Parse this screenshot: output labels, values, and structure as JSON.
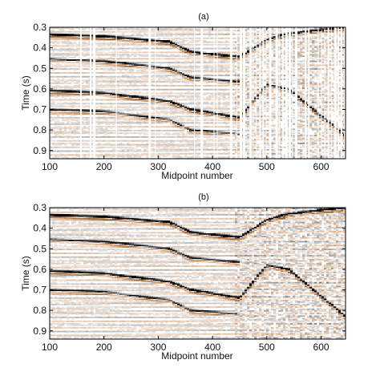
{
  "chart_data": [
    {
      "type": "heatmap",
      "title": "(a)",
      "xlabel": "Midpoint number",
      "ylabel": "Time (s)",
      "xlim": [
        100,
        645
      ],
      "ylim": [
        0.3,
        0.94
      ],
      "y_inverted": true,
      "x_ticks": [
        100,
        200,
        300,
        400,
        500,
        600
      ],
      "y_ticks": [
        0.3,
        0.4,
        0.5,
        0.6,
        0.7,
        0.8,
        0.9
      ],
      "colormap": [
        "#8a5a2b",
        "#d9a57a",
        "#ffffff",
        "#9a9a9a",
        "#000000"
      ],
      "reflectors": [
        {
          "midpoints": [
            100,
            200,
            320,
            360,
            450,
            500,
            540,
            645
          ],
          "times": [
            0.335,
            0.345,
            0.37,
            0.42,
            0.445,
            0.36,
            0.33,
            0.3
          ],
          "strength": 0.95
        },
        {
          "midpoints": [
            100,
            200,
            320,
            360,
            450
          ],
          "times": [
            0.455,
            0.465,
            0.5,
            0.545,
            0.565
          ],
          "strength": 0.7
        },
        {
          "midpoints": [
            100,
            200,
            320,
            360,
            450,
            500,
            540,
            645
          ],
          "times": [
            0.61,
            0.62,
            0.66,
            0.7,
            0.74,
            0.58,
            0.6,
            0.83
          ],
          "strength": 0.85
        },
        {
          "midpoints": [
            100,
            200,
            320,
            360,
            450
          ],
          "times": [
            0.7,
            0.71,
            0.75,
            0.8,
            0.82
          ],
          "strength": 0.6
        }
      ],
      "missing_traces": true
    },
    {
      "type": "heatmap",
      "title": "(b)",
      "xlabel": "Midpoint number",
      "ylabel": "Time (s)",
      "xlim": [
        100,
        645
      ],
      "ylim": [
        0.3,
        0.94
      ],
      "y_inverted": true,
      "x_ticks": [
        100,
        200,
        300,
        400,
        500,
        600
      ],
      "y_ticks": [
        0.3,
        0.4,
        0.5,
        0.6,
        0.7,
        0.8,
        0.9
      ],
      "colormap": [
        "#8a5a2b",
        "#d9a57a",
        "#ffffff",
        "#9a9a9a",
        "#000000"
      ],
      "reflectors": [
        {
          "midpoints": [
            100,
            200,
            320,
            360,
            450,
            500,
            540,
            645
          ],
          "times": [
            0.335,
            0.345,
            0.37,
            0.42,
            0.445,
            0.36,
            0.33,
            0.3
          ],
          "strength": 0.95
        },
        {
          "midpoints": [
            100,
            200,
            320,
            360,
            450
          ],
          "times": [
            0.455,
            0.465,
            0.5,
            0.545,
            0.565
          ],
          "strength": 0.7
        },
        {
          "midpoints": [
            100,
            200,
            320,
            360,
            450,
            500,
            540,
            645
          ],
          "times": [
            0.61,
            0.62,
            0.66,
            0.7,
            0.74,
            0.58,
            0.6,
            0.83
          ],
          "strength": 0.85
        },
        {
          "midpoints": [
            100,
            200,
            320,
            360,
            450
          ],
          "times": [
            0.7,
            0.71,
            0.75,
            0.8,
            0.82
          ],
          "strength": 0.6
        }
      ],
      "missing_traces": false
    }
  ]
}
